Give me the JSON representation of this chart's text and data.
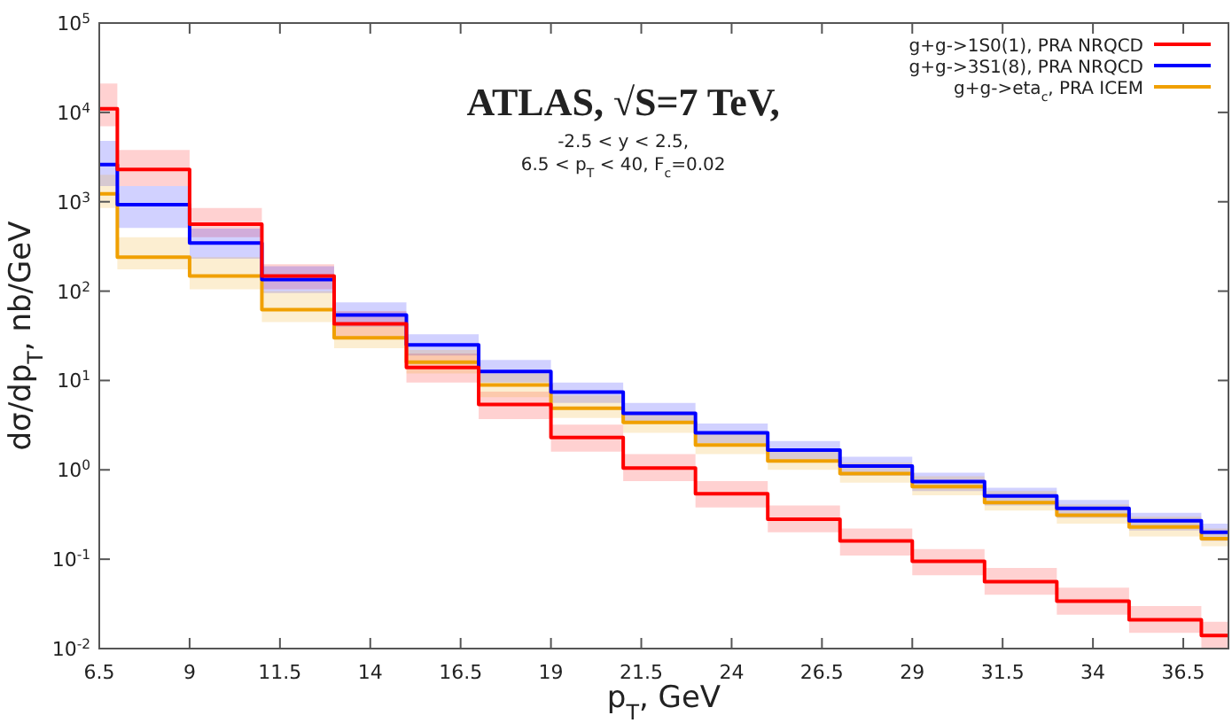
{
  "chart_data": {
    "type": "step",
    "xlabel": "p$_{T}$, GeV",
    "ylabel": "dσ/dp$_{T}$, nb/GeV",
    "annotations": [
      "ATLAS, √S=7 TeV,",
      "-2.5 < y < 2.5,",
      "6.5 < p$_{T}$ < 40, F$_{c}$=0.02"
    ],
    "x": [
      6.5,
      7,
      9,
      11,
      13,
      15,
      17,
      19,
      21,
      23,
      25,
      27,
      29,
      31,
      33,
      35,
      37,
      37.75
    ],
    "series": [
      {
        "name": "g+g->1S0(1), PRA NRQCD",
        "color": "#ff0000",
        "values": [
          11000,
          2300,
          560,
          148,
          43,
          14,
          5.4,
          2.3,
          1.05,
          0.54,
          0.28,
          0.16,
          0.095,
          0.056,
          0.034,
          0.021,
          0.014,
          0.014
        ],
        "upper": [
          21000,
          3800,
          850,
          200,
          60,
          20,
          7.5,
          3.2,
          1.5,
          0.75,
          0.4,
          0.22,
          0.13,
          0.08,
          0.048,
          0.03,
          0.02,
          0.02
        ],
        "lower": [
          7000,
          1500,
          400,
          105,
          30,
          9.5,
          3.7,
          1.6,
          0.75,
          0.38,
          0.2,
          0.11,
          0.066,
          0.04,
          0.024,
          0.015,
          0.01,
          0.01
        ]
      },
      {
        "name": "g+g->3S1(8), PRA NRQCD",
        "color": "#0000ff",
        "values": [
          2600,
          930,
          345,
          135,
          54,
          25,
          12.6,
          7.4,
          4.3,
          2.6,
          1.66,
          1.1,
          0.74,
          0.51,
          0.37,
          0.27,
          0.2,
          0.2
        ],
        "upper": [
          4800,
          1500,
          500,
          190,
          75,
          33,
          17,
          9.5,
          5.6,
          3.3,
          2.1,
          1.4,
          0.93,
          0.63,
          0.46,
          0.33,
          0.25,
          0.25
        ],
        "lower": [
          1500,
          510,
          230,
          95,
          40,
          19,
          9.5,
          5.6,
          3.3,
          2.0,
          1.3,
          0.86,
          0.58,
          0.4,
          0.29,
          0.21,
          0.16,
          0.16
        ]
      },
      {
        "name": "g+g->eta$_{c}$, PRA ICEM",
        "color": "#f0a000",
        "values": [
          1230,
          240,
          148,
          62,
          30,
          16,
          8.9,
          4.9,
          3.4,
          1.9,
          1.26,
          0.91,
          0.65,
          0.43,
          0.31,
          0.23,
          0.17,
          0.17
        ],
        "upper": [
          2000,
          400,
          240,
          100,
          42,
          22,
          12,
          6.8,
          4.5,
          2.6,
          1.7,
          1.2,
          0.85,
          0.58,
          0.41,
          0.3,
          0.22,
          0.22
        ],
        "lower": [
          850,
          175,
          105,
          45,
          23,
          12,
          6.5,
          3.8,
          2.6,
          1.5,
          1.0,
          0.72,
          0.52,
          0.35,
          0.25,
          0.18,
          0.14,
          0.14
        ]
      }
    ],
    "xlim": [
      6.5,
      37.75
    ],
    "xticks": [
      6.5,
      9,
      11.5,
      14,
      16.5,
      19,
      21.5,
      24,
      26.5,
      29,
      31.5,
      34,
      36.5
    ],
    "ylim": [
      0.01,
      100000
    ],
    "log": true,
    "yticks": [
      {
        "value": 0.01,
        "label": "10$^{-2}$"
      },
      {
        "value": 0.1,
        "label": "10$^{-1}$"
      },
      {
        "value": 1,
        "label": "10$^{0}$"
      },
      {
        "value": 10,
        "label": "10$^{1}$"
      },
      {
        "value": 100,
        "label": "10$^{2}$"
      },
      {
        "value": 1000,
        "label": "10$^{3}$"
      },
      {
        "value": 10000,
        "label": "10$^{4}$"
      },
      {
        "value": 100000,
        "label": "10$^{5}$"
      }
    ],
    "grid": false,
    "legend": "top right"
  }
}
